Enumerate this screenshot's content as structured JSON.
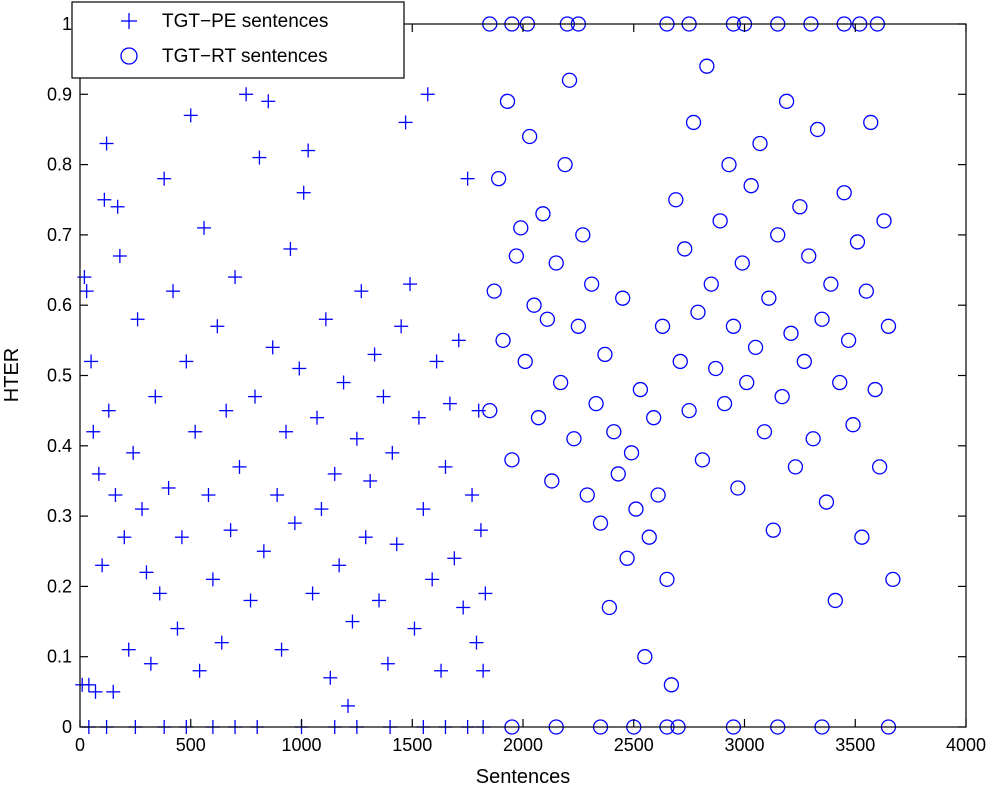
{
  "chart_data": {
    "type": "scatter",
    "xlabel": "Sentences",
    "ylabel": "HTER",
    "xlim": [
      0,
      4000
    ],
    "ylim": [
      0,
      1
    ],
    "xticks": [
      "0",
      "500",
      "1000",
      "1500",
      "2000",
      "2500",
      "3000",
      "3500",
      "4000"
    ],
    "yticks": [
      "0",
      "0.1",
      "0.2",
      "0.3",
      "0.4",
      "0.5",
      "0.6",
      "0.7",
      "0.8",
      "0.9",
      "1"
    ],
    "legend_position": "top-left",
    "grid": false,
    "series_color": "#0000ff",
    "series": [
      {
        "name": "TGT−PE sentences",
        "marker": "plus",
        "points": [
          [
            10,
            0.06
          ],
          [
            20,
            0.64
          ],
          [
            30,
            0.62
          ],
          [
            40,
            0.06
          ],
          [
            50,
            0.52
          ],
          [
            60,
            0.42
          ],
          [
            70,
            0.05
          ],
          [
            85,
            0.36
          ],
          [
            100,
            0.23
          ],
          [
            110,
            0.75
          ],
          [
            120,
            0.83
          ],
          [
            130,
            0.45
          ],
          [
            150,
            0.05
          ],
          [
            160,
            0.33
          ],
          [
            170,
            0.74
          ],
          [
            180,
            0.67
          ],
          [
            200,
            0.27
          ],
          [
            220,
            0.11
          ],
          [
            240,
            0.39
          ],
          [
            260,
            0.58
          ],
          [
            280,
            0.31
          ],
          [
            300,
            0.22
          ],
          [
            320,
            0.09
          ],
          [
            340,
            0.47
          ],
          [
            360,
            0.19
          ],
          [
            380,
            0.78
          ],
          [
            400,
            0.34
          ],
          [
            420,
            0.62
          ],
          [
            440,
            0.14
          ],
          [
            460,
            0.27
          ],
          [
            480,
            0.52
          ],
          [
            500,
            0.87
          ],
          [
            520,
            0.42
          ],
          [
            540,
            0.08
          ],
          [
            560,
            0.71
          ],
          [
            580,
            0.33
          ],
          [
            600,
            0.21
          ],
          [
            620,
            0.57
          ],
          [
            640,
            0.12
          ],
          [
            660,
            0.45
          ],
          [
            680,
            0.28
          ],
          [
            700,
            0.64
          ],
          [
            720,
            0.37
          ],
          [
            750,
            0.9
          ],
          [
            770,
            0.18
          ],
          [
            790,
            0.47
          ],
          [
            810,
            0.81
          ],
          [
            830,
            0.25
          ],
          [
            850,
            0.89
          ],
          [
            870,
            0.54
          ],
          [
            890,
            0.33
          ],
          [
            910,
            0.11
          ],
          [
            930,
            0.42
          ],
          [
            950,
            0.68
          ],
          [
            970,
            0.29
          ],
          [
            990,
            0.51
          ],
          [
            1010,
            0.76
          ],
          [
            1030,
            0.82
          ],
          [
            1050,
            0.19
          ],
          [
            1070,
            0.44
          ],
          [
            1090,
            0.31
          ],
          [
            1110,
            0.58
          ],
          [
            1130,
            0.07
          ],
          [
            1150,
            0.36
          ],
          [
            1170,
            0.23
          ],
          [
            1190,
            0.49
          ],
          [
            1210,
            0.03
          ],
          [
            1230,
            0.15
          ],
          [
            1250,
            0.41
          ],
          [
            1270,
            0.62
          ],
          [
            1290,
            0.27
          ],
          [
            1310,
            0.35
          ],
          [
            1330,
            0.53
          ],
          [
            1350,
            0.18
          ],
          [
            1370,
            0.47
          ],
          [
            1390,
            0.09
          ],
          [
            1410,
            0.39
          ],
          [
            1430,
            0.26
          ],
          [
            1450,
            0.57
          ],
          [
            1470,
            0.86
          ],
          [
            1490,
            0.63
          ],
          [
            1510,
            0.14
          ],
          [
            1530,
            0.44
          ],
          [
            1550,
            0.31
          ],
          [
            1570,
            0.9
          ],
          [
            1590,
            0.21
          ],
          [
            1610,
            0.52
          ],
          [
            1630,
            0.08
          ],
          [
            1650,
            0.37
          ],
          [
            1670,
            0.46
          ],
          [
            1690,
            0.24
          ],
          [
            1710,
            0.55
          ],
          [
            1730,
            0.17
          ],
          [
            1750,
            0.78
          ],
          [
            1770,
            0.33
          ],
          [
            1790,
            0.12
          ],
          [
            1800,
            0.45
          ],
          [
            1810,
            0.28
          ],
          [
            1820,
            0.08
          ],
          [
            1830,
            0.19
          ],
          [
            40,
            0.0
          ],
          [
            120,
            0.0
          ],
          [
            250,
            0.0
          ],
          [
            380,
            0.0
          ],
          [
            480,
            0.0
          ],
          [
            600,
            0.0
          ],
          [
            700,
            0.0
          ],
          [
            800,
            0.0
          ],
          [
            1000,
            0.0
          ],
          [
            1150,
            0.0
          ],
          [
            1250,
            0.0
          ],
          [
            1400,
            0.0
          ],
          [
            1550,
            0.0
          ],
          [
            1650,
            0.0
          ],
          [
            1750,
            0.0
          ],
          [
            1820,
            0.0
          ]
        ]
      },
      {
        "name": "TGT−RT sentences",
        "marker": "circle",
        "points": [
          [
            1850,
            0.45
          ],
          [
            1870,
            0.62
          ],
          [
            1890,
            0.78
          ],
          [
            1910,
            0.55
          ],
          [
            1930,
            0.89
          ],
          [
            1950,
            0.38
          ],
          [
            1970,
            0.67
          ],
          [
            1990,
            0.71
          ],
          [
            2010,
            0.52
          ],
          [
            2030,
            0.84
          ],
          [
            2050,
            0.6
          ],
          [
            2070,
            0.44
          ],
          [
            2090,
            0.73
          ],
          [
            2110,
            0.58
          ],
          [
            2130,
            0.35
          ],
          [
            2150,
            0.66
          ],
          [
            2170,
            0.49
          ],
          [
            2190,
            0.8
          ],
          [
            2210,
            0.92
          ],
          [
            2230,
            0.41
          ],
          [
            2250,
            0.57
          ],
          [
            2270,
            0.7
          ],
          [
            2290,
            0.33
          ],
          [
            2310,
            0.63
          ],
          [
            2330,
            0.46
          ],
          [
            2350,
            0.29
          ],
          [
            2370,
            0.53
          ],
          [
            2390,
            0.17
          ],
          [
            2410,
            0.42
          ],
          [
            2430,
            0.36
          ],
          [
            2450,
            0.61
          ],
          [
            2470,
            0.24
          ],
          [
            2490,
            0.39
          ],
          [
            2510,
            0.31
          ],
          [
            2530,
            0.48
          ],
          [
            2550,
            0.1
          ],
          [
            2570,
            0.27
          ],
          [
            2590,
            0.44
          ],
          [
            2610,
            0.33
          ],
          [
            2630,
            0.57
          ],
          [
            2650,
            0.21
          ],
          [
            2670,
            0.06
          ],
          [
            2690,
            0.75
          ],
          [
            2710,
            0.52
          ],
          [
            2730,
            0.68
          ],
          [
            2750,
            0.45
          ],
          [
            2770,
            0.86
          ],
          [
            2790,
            0.59
          ],
          [
            2810,
            0.38
          ],
          [
            2830,
            0.94
          ],
          [
            2850,
            0.63
          ],
          [
            2870,
            0.51
          ],
          [
            2890,
            0.72
          ],
          [
            2910,
            0.46
          ],
          [
            2930,
            0.8
          ],
          [
            2950,
            0.57
          ],
          [
            2970,
            0.34
          ],
          [
            2990,
            0.66
          ],
          [
            3010,
            0.49
          ],
          [
            3030,
            0.77
          ],
          [
            3050,
            0.54
          ],
          [
            3070,
            0.83
          ],
          [
            3090,
            0.42
          ],
          [
            3110,
            0.61
          ],
          [
            3130,
            0.28
          ],
          [
            3150,
            0.7
          ],
          [
            3170,
            0.47
          ],
          [
            3190,
            0.89
          ],
          [
            3210,
            0.56
          ],
          [
            3230,
            0.37
          ],
          [
            3250,
            0.74
          ],
          [
            3270,
            0.52
          ],
          [
            3290,
            0.67
          ],
          [
            3310,
            0.41
          ],
          [
            3330,
            0.85
          ],
          [
            3350,
            0.58
          ],
          [
            3370,
            0.32
          ],
          [
            3390,
            0.63
          ],
          [
            3410,
            0.18
          ],
          [
            3430,
            0.49
          ],
          [
            3450,
            0.76
          ],
          [
            3470,
            0.55
          ],
          [
            3490,
            0.43
          ],
          [
            3510,
            0.69
          ],
          [
            3530,
            0.27
          ],
          [
            3550,
            0.62
          ],
          [
            3570,
            0.86
          ],
          [
            3590,
            0.48
          ],
          [
            3610,
            0.37
          ],
          [
            3630,
            0.72
          ],
          [
            3650,
            0.57
          ],
          [
            3670,
            0.21
          ],
          [
            1850,
            1.0
          ],
          [
            1950,
            1.0
          ],
          [
            2020,
            1.0
          ],
          [
            2200,
            1.0
          ],
          [
            2250,
            1.0
          ],
          [
            2650,
            1.0
          ],
          [
            2750,
            1.0
          ],
          [
            2950,
            1.0
          ],
          [
            3000,
            1.0
          ],
          [
            3150,
            1.0
          ],
          [
            3300,
            1.0
          ],
          [
            3450,
            1.0
          ],
          [
            3520,
            1.0
          ],
          [
            3600,
            1.0
          ],
          [
            1950,
            0.0
          ],
          [
            2150,
            0.0
          ],
          [
            2350,
            0.0
          ],
          [
            2500,
            0.0
          ],
          [
            2650,
            0.0
          ],
          [
            2700,
            0.0
          ],
          [
            2950,
            0.0
          ],
          [
            3150,
            0.0
          ],
          [
            3350,
            0.0
          ],
          [
            3650,
            0.0
          ]
        ]
      }
    ]
  }
}
